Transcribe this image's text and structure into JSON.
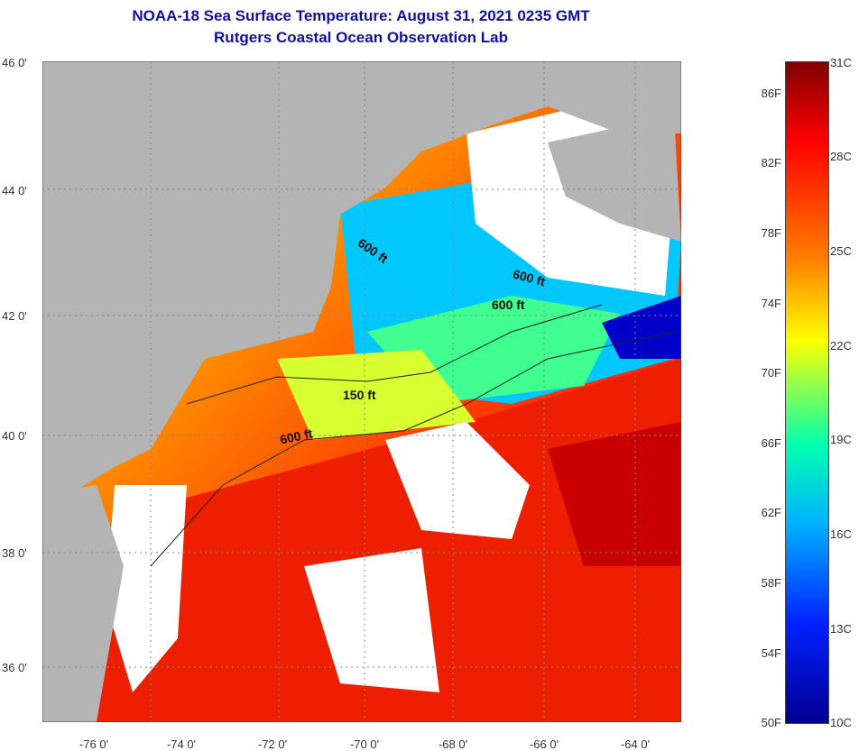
{
  "title": {
    "line1": "NOAA-18 Sea Surface Temperature:  August 31, 2021 0235 GMT",
    "line2": "Rutgers Coastal Ocean Observation Lab"
  },
  "map": {
    "latitude_labels": [
      "46 0'",
      "44 0'",
      "42 0'",
      "40 0'",
      "38 0'",
      "36 0'"
    ],
    "longitude_labels": [
      "-76 0'",
      "-74 0'",
      "-72 0'",
      "-70 0'",
      "-68 0'",
      "-66 0'",
      "-64 0'"
    ],
    "contour_labels": [
      "600 ft",
      "600 ft",
      "600 ft",
      "150 ft",
      "600 ft"
    ],
    "colors": {
      "land": "#b4b4b4",
      "cloud": "#ffffff",
      "warm": "#ff3a00",
      "cool": "#00c8ff",
      "cold": "#0000c8"
    }
  },
  "colorbar": {
    "fahrenheit_labels": [
      "86F",
      "82F",
      "78F",
      "74F",
      "70F",
      "66F",
      "62F",
      "58F",
      "54F",
      "50F"
    ],
    "celsius_labels": [
      "31C",
      "28C",
      "25C",
      "22C",
      "19C",
      "16C",
      "13C",
      "10C"
    ]
  }
}
